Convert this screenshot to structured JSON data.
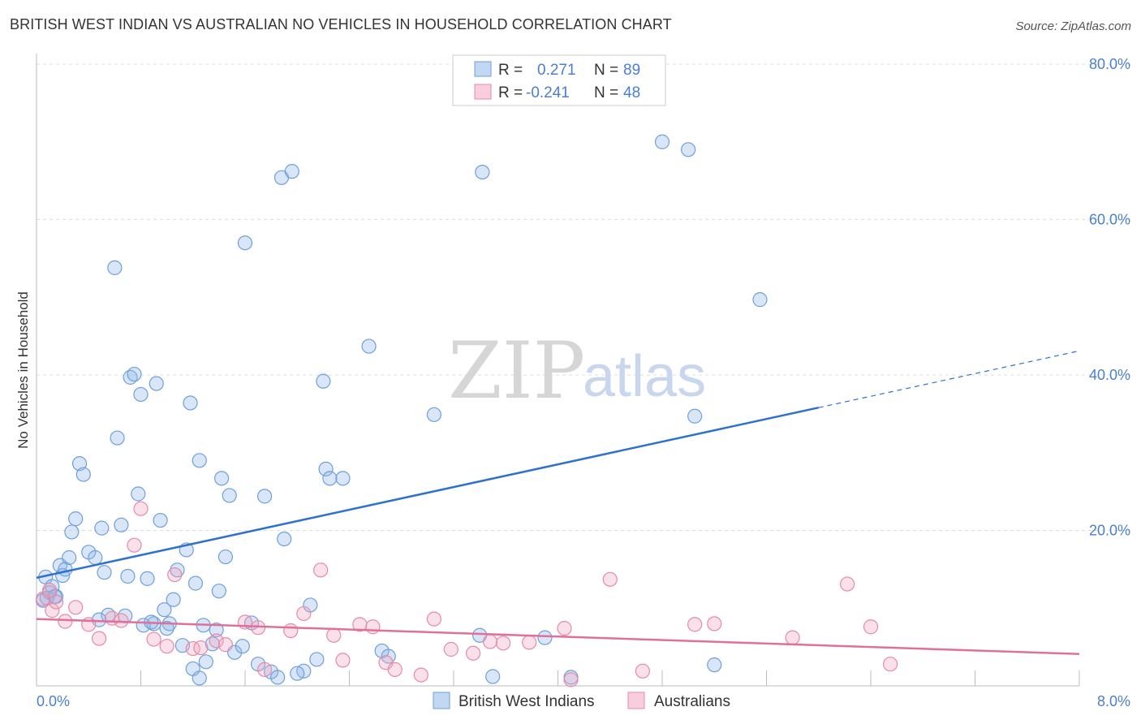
{
  "title": "BRITISH WEST INDIAN VS AUSTRALIAN NO VEHICLES IN HOUSEHOLD CORRELATION CHART",
  "source": "Source: ZipAtlas.com",
  "watermark": {
    "zip": "ZIP",
    "atlas": "atlas"
  },
  "colors": {
    "blue": "#8fb7e8",
    "blue_line": "#2f72cc",
    "pink": "#f2a6bf",
    "pink_line": "#e0709a",
    "axis_text": "#4a7fd0",
    "grid": "#dddddd"
  },
  "legend": {
    "rows": [
      {
        "r_label": "R =",
        "r_value": "0.271",
        "n_label": "N =",
        "n_value": "89"
      },
      {
        "r_label": "R =",
        "r_value": "-0.241",
        "n_label": "N =",
        "n_value": "48"
      }
    ]
  },
  "chart_data": {
    "type": "scatter",
    "title": "BRITISH WEST INDIAN VS AUSTRALIAN NO VEHICLES IN HOUSEHOLD CORRELATION CHART",
    "xlabel": "",
    "ylabel": "No Vehicles in Household",
    "xlim": [
      0,
      8
    ],
    "ylim": [
      0,
      80
    ],
    "x_tick_labels": [
      "0.0%",
      "8.0%"
    ],
    "y_ticks": [
      20,
      40,
      60,
      80
    ],
    "y_tick_labels": [
      "20.0%",
      "40.0%",
      "60.0%",
      "80.0%"
    ],
    "series": [
      {
        "name": "British West Indians",
        "r": 0.271,
        "n": 89,
        "trend": {
          "x0": 0.0,
          "y0": 13.9,
          "x1": 6.0,
          "y1": 35.8,
          "dash_to_x": 8.0,
          "dash_to_y": 43.1
        },
        "points": [
          [
            0.05,
            11
          ],
          [
            0.07,
            14
          ],
          [
            0.1,
            12
          ],
          [
            0.12,
            12.8
          ],
          [
            0.15,
            11.5
          ],
          [
            0.18,
            15.5
          ],
          [
            0.2,
            14.2
          ],
          [
            0.22,
            15
          ],
          [
            0.25,
            16.5
          ],
          [
            0.27,
            19.8
          ],
          [
            0.3,
            21.5
          ],
          [
            0.33,
            28.6
          ],
          [
            0.36,
            27.2
          ],
          [
            0.4,
            17.2
          ],
          [
            0.45,
            16.5
          ],
          [
            0.5,
            20.3
          ],
          [
            0.52,
            14.6
          ],
          [
            0.55,
            9.1
          ],
          [
            0.6,
            53.8
          ],
          [
            0.62,
            31.9
          ],
          [
            0.65,
            20.7
          ],
          [
            0.7,
            14.1
          ],
          [
            0.72,
            39.7
          ],
          [
            0.75,
            40.1
          ],
          [
            0.78,
            24.7
          ],
          [
            0.8,
            37.5
          ],
          [
            0.85,
            13.8
          ],
          [
            0.9,
            8
          ],
          [
            0.92,
            38.9
          ],
          [
            0.95,
            21.3
          ],
          [
            0.98,
            9.8
          ],
          [
            1.02,
            8
          ],
          [
            1.05,
            11.1
          ],
          [
            1.08,
            14.9
          ],
          [
            1.12,
            5.2
          ],
          [
            1.15,
            17.5
          ],
          [
            1.18,
            36.4
          ],
          [
            1.2,
            2.2
          ],
          [
            1.22,
            13.2
          ],
          [
            1.25,
            29
          ],
          [
            1.28,
            7.8
          ],
          [
            1.3,
            3.1
          ],
          [
            1.35,
            5.4
          ],
          [
            1.4,
            12.2
          ],
          [
            1.42,
            26.7
          ],
          [
            1.45,
            16.6
          ],
          [
            1.48,
            24.5
          ],
          [
            1.52,
            4.3
          ],
          [
            1.6,
            57
          ],
          [
            1.65,
            8.1
          ],
          [
            1.75,
            24.4
          ],
          [
            1.8,
            1.8
          ],
          [
            1.88,
            65.4
          ],
          [
            1.9,
            18.9
          ],
          [
            1.96,
            66.2
          ],
          [
            2.05,
            1.9
          ],
          [
            2.1,
            10.4
          ],
          [
            2.2,
            39.2
          ],
          [
            2.22,
            27.9
          ],
          [
            2.25,
            26.7
          ],
          [
            2.35,
            26.7
          ],
          [
            2.55,
            43.7
          ],
          [
            2.65,
            4.5
          ],
          [
            2.7,
            3.8
          ],
          [
            3.05,
            34.9
          ],
          [
            3.4,
            6.5
          ],
          [
            3.42,
            66.1
          ],
          [
            3.5,
            1.2
          ],
          [
            3.9,
            6.2
          ],
          [
            4.1,
            1.1
          ],
          [
            4.8,
            70
          ],
          [
            5.0,
            69
          ],
          [
            5.05,
            34.7
          ],
          [
            5.2,
            2.7
          ],
          [
            5.55,
            49.7
          ],
          [
            0.08,
            11.3
          ],
          [
            0.14,
            11.5
          ],
          [
            0.48,
            8.5
          ],
          [
            0.68,
            9
          ],
          [
            0.82,
            7.8
          ],
          [
            1.0,
            7.4
          ],
          [
            1.58,
            5.1
          ],
          [
            1.7,
            2.8
          ],
          [
            1.85,
            1.1
          ],
          [
            2.0,
            1.6
          ],
          [
            2.15,
            3.4
          ],
          [
            1.25,
            1.0
          ],
          [
            0.88,
            8.2
          ],
          [
            1.38,
            7.2
          ]
        ]
      },
      {
        "name": "Australians",
        "r": -0.241,
        "n": 48,
        "trend": {
          "x0": 0.0,
          "y0": 8.6,
          "x1": 8.0,
          "y1": 4.1
        },
        "points": [
          [
            0.05,
            11.2
          ],
          [
            0.1,
            12.3
          ],
          [
            0.12,
            9.7
          ],
          [
            0.15,
            10.8
          ],
          [
            0.22,
            8.3
          ],
          [
            0.3,
            10.1
          ],
          [
            0.4,
            7.9
          ],
          [
            0.48,
            6.1
          ],
          [
            0.58,
            8.7
          ],
          [
            0.65,
            8.4
          ],
          [
            0.75,
            18.1
          ],
          [
            0.8,
            22.8
          ],
          [
            0.9,
            6
          ],
          [
            1.0,
            5.1
          ],
          [
            1.06,
            14.3
          ],
          [
            1.2,
            4.8
          ],
          [
            1.26,
            4.9
          ],
          [
            1.38,
            5.8
          ],
          [
            1.45,
            5.3
          ],
          [
            1.6,
            8.2
          ],
          [
            1.7,
            7.5
          ],
          [
            1.75,
            2.1
          ],
          [
            1.95,
            7.1
          ],
          [
            2.05,
            9.3
          ],
          [
            2.18,
            14.9
          ],
          [
            2.28,
            6.5
          ],
          [
            2.35,
            3.3
          ],
          [
            2.48,
            7.9
          ],
          [
            2.58,
            7.6
          ],
          [
            2.68,
            3
          ],
          [
            2.75,
            2.1
          ],
          [
            2.95,
            1.4
          ],
          [
            3.05,
            8.6
          ],
          [
            3.18,
            4.7
          ],
          [
            3.35,
            4.2
          ],
          [
            3.48,
            5.7
          ],
          [
            3.58,
            5.5
          ],
          [
            3.78,
            5.6
          ],
          [
            4.05,
            7.4
          ],
          [
            4.4,
            13.7
          ],
          [
            4.65,
            1.9
          ],
          [
            5.05,
            7.9
          ],
          [
            5.2,
            8
          ],
          [
            5.8,
            6.2
          ],
          [
            6.22,
            13.1
          ],
          [
            6.4,
            7.6
          ],
          [
            6.55,
            2.8
          ],
          [
            4.1,
            0.8
          ]
        ]
      }
    ]
  }
}
